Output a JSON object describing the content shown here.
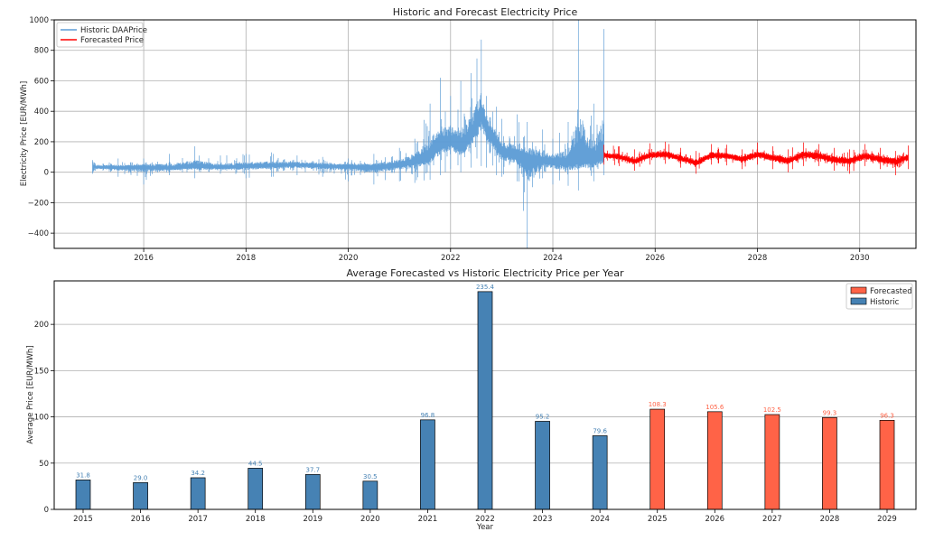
{
  "chart_data": [
    {
      "type": "line",
      "title": "Historic and Forecast Electricity Price",
      "xlabel": "",
      "ylabel": "Electricity Price [EUR/MWh]",
      "xlim": [
        2014.25,
        2031.1
      ],
      "ylim": [
        -500,
        1000
      ],
      "xticks": [
        2016,
        2018,
        2020,
        2022,
        2024,
        2026,
        2028,
        2030
      ],
      "yticks": [
        -400,
        -200,
        0,
        200,
        400,
        600,
        800,
        1000
      ],
      "grid": true,
      "legend_position": "top-left",
      "series": [
        {
          "name": "Historic DAAPrice",
          "color": "#5b9bd5",
          "x": [
            2015.0,
            2015.5,
            2016.0,
            2016.5,
            2017.0,
            2017.5,
            2018.0,
            2018.5,
            2019.0,
            2019.5,
            2020.0,
            2020.5,
            2021.0,
            2021.3,
            2021.6,
            2021.8,
            2022.0,
            2022.2,
            2022.4,
            2022.6,
            2022.7,
            2022.9,
            2023.0,
            2023.3,
            2023.5,
            2023.8,
            2024.0,
            2024.3,
            2024.5,
            2024.8,
            2025.0
          ],
          "y": [
            35,
            30,
            35,
            25,
            40,
            30,
            40,
            45,
            50,
            40,
            40,
            30,
            50,
            70,
            110,
            180,
            200,
            160,
            230,
            380,
            300,
            180,
            130,
            110,
            90,
            70,
            70,
            60,
            80,
            75,
            100
          ],
          "range_min": [
            -10,
            -30,
            -80,
            -20,
            -40,
            -10,
            -40,
            -30,
            -20,
            -30,
            -60,
            -80,
            -60,
            -70,
            -50,
            -20,
            20,
            0,
            30,
            40,
            30,
            -20,
            -30,
            -60,
            -500,
            -40,
            -80,
            -90,
            -120,
            -60,
            -20
          ],
          "range_max": [
            80,
            90,
            90,
            120,
            170,
            110,
            120,
            130,
            110,
            100,
            90,
            120,
            160,
            220,
            450,
            620,
            500,
            600,
            650,
            870,
            500,
            430,
            350,
            380,
            330,
            280,
            220,
            330,
            1000,
            450,
            940
          ]
        },
        {
          "name": "Forecasted Price",
          "color": "#ff0000",
          "x": [
            2025.0,
            2025.3,
            2025.6,
            2025.9,
            2026.2,
            2026.5,
            2026.8,
            2027.1,
            2027.4,
            2027.7,
            2028.0,
            2028.3,
            2028.6,
            2028.9,
            2029.2,
            2029.5,
            2029.8,
            2030.1,
            2030.4,
            2030.7,
            2030.95
          ],
          "y": [
            110,
            100,
            70,
            110,
            115,
            90,
            60,
            110,
            105,
            85,
            115,
            95,
            75,
            115,
            105,
            80,
            75,
            105,
            85,
            70,
            100
          ],
          "range_min": [
            50,
            40,
            10,
            50,
            55,
            30,
            -10,
            50,
            45,
            20,
            50,
            20,
            0,
            40,
            40,
            10,
            -10,
            40,
            20,
            -20,
            20
          ],
          "range_max": [
            180,
            170,
            150,
            190,
            200,
            160,
            140,
            185,
            180,
            150,
            195,
            170,
            150,
            195,
            185,
            160,
            150,
            185,
            160,
            140,
            175
          ]
        }
      ]
    },
    {
      "type": "bar",
      "title": "Average Forecasted vs Historic Electricity Price per Year",
      "xlabel": "Year",
      "ylabel": "Average Price [EUR/MWh]",
      "ylim": [
        0,
        247
      ],
      "yticks": [
        0,
        50,
        100,
        150,
        200
      ],
      "grid": true,
      "legend_position": "top-right",
      "categories": [
        "2015",
        "2016",
        "2017",
        "2018",
        "2019",
        "2020",
        "2021",
        "2022",
        "2023",
        "2024",
        "2025",
        "2026",
        "2027",
        "2028",
        "2029"
      ],
      "series": [
        {
          "name": "Forecasted",
          "color": "#ff6347",
          "values": [
            null,
            null,
            null,
            null,
            null,
            null,
            null,
            null,
            null,
            null,
            108.3,
            105.6,
            102.5,
            99.3,
            96.3
          ],
          "labels": [
            "",
            "",
            "",
            "",
            "",
            "",
            "",
            "",
            "",
            "",
            "108.3",
            "105.6",
            "102.5",
            "99.3",
            "96.3"
          ]
        },
        {
          "name": "Historic",
          "color": "#4682b4",
          "values": [
            31.8,
            29.0,
            34.2,
            44.5,
            37.7,
            30.5,
            96.8,
            235.4,
            95.2,
            79.6,
            null,
            null,
            null,
            null,
            null
          ],
          "labels": [
            "31.8",
            "29.0",
            "34.2",
            "44.5",
            "37.7",
            "30.5",
            "96.8",
            "235.4",
            "95.2",
            "79.6",
            "",
            "",
            "",
            "",
            ""
          ]
        }
      ]
    }
  ]
}
